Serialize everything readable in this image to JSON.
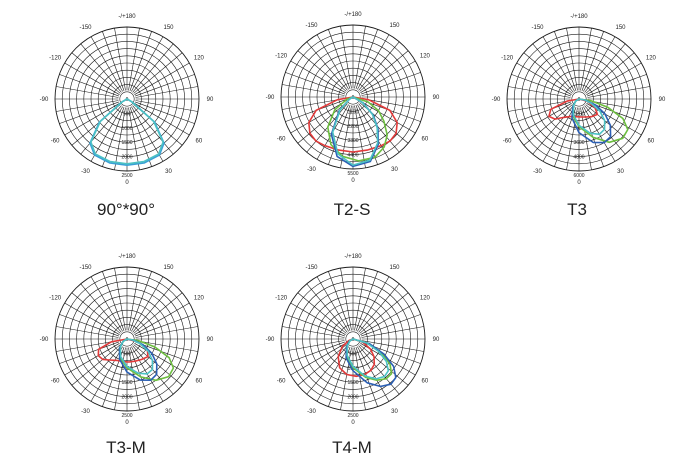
{
  "chart_data": [
    {
      "type": "polar",
      "title": "90°*90°",
      "angle_labels": [
        "-/+180",
        "150",
        "120",
        "90",
        "60",
        "30",
        "0",
        "-30",
        "-60",
        "-90",
        "-120",
        "-150"
      ],
      "radial_labels": [
        "0",
        "500",
        "1000",
        "1500",
        "2000",
        "2500"
      ],
      "rmax": 2500,
      "series": [
        {
          "color": "#3a9fd6",
          "points": [
            [
              -90,
              0
            ],
            [
              -60,
              200
            ],
            [
              -50,
              1250
            ],
            [
              -40,
              2000
            ],
            [
              -30,
              2250
            ],
            [
              -15,
              2300
            ],
            [
              0,
              2300
            ],
            [
              15,
              2300
            ],
            [
              30,
              2250
            ],
            [
              40,
              2000
            ],
            [
              50,
              1250
            ],
            [
              60,
              200
            ],
            [
              90,
              0
            ]
          ]
        },
        {
          "color": "#4cc2c4",
          "points": [
            [
              -90,
              0
            ],
            [
              -60,
              180
            ],
            [
              -50,
              1200
            ],
            [
              -40,
              1950
            ],
            [
              -30,
              2200
            ],
            [
              -15,
              2250
            ],
            [
              0,
              2250
            ],
            [
              15,
              2250
            ],
            [
              30,
              2200
            ],
            [
              40,
              1950
            ],
            [
              50,
              1200
            ],
            [
              60,
              180
            ],
            [
              90,
              0
            ]
          ]
        }
      ]
    },
    {
      "type": "polar",
      "title": "T2-S",
      "angle_labels": [
        "-/+180",
        "150",
        "120",
        "90",
        "60",
        "30",
        "0",
        "-30",
        "-60",
        "-90",
        "-120",
        "-150"
      ],
      "radial_labels": [
        "0",
        "1100",
        "2200",
        "3300",
        "4400",
        "5500"
      ],
      "rmax": 5500,
      "series": [
        {
          "color": "#e23a3a",
          "points": [
            [
              -90,
              0
            ],
            [
              -80,
              1200
            ],
            [
              -70,
              3000
            ],
            [
              -60,
              3900
            ],
            [
              -50,
              4300
            ],
            [
              -40,
              4400
            ],
            [
              -30,
              4300
            ],
            [
              -15,
              4200
            ],
            [
              0,
              4200
            ],
            [
              15,
              4200
            ],
            [
              30,
              4300
            ],
            [
              40,
              4400
            ],
            [
              50,
              4300
            ],
            [
              60,
              3900
            ],
            [
              70,
              3000
            ],
            [
              80,
              1200
            ],
            [
              90,
              0
            ]
          ]
        },
        {
          "color": "#6dbe3f",
          "points": [
            [
              -90,
              0
            ],
            [
              -70,
              500
            ],
            [
              -55,
              1700
            ],
            [
              -40,
              3000
            ],
            [
              -25,
              4000
            ],
            [
              -10,
              4600
            ],
            [
              5,
              4900
            ],
            [
              20,
              4900
            ],
            [
              32,
              4500
            ],
            [
              42,
              3900
            ],
            [
              52,
              3000
            ],
            [
              62,
              2200
            ],
            [
              72,
              1200
            ],
            [
              90,
              0
            ]
          ]
        },
        {
          "color": "#2b5fb4",
          "points": [
            [
              -90,
              0
            ],
            [
              -60,
              300
            ],
            [
              -45,
              1500
            ],
            [
              -30,
              3300
            ],
            [
              -15,
              4700
            ],
            [
              0,
              5300
            ],
            [
              15,
              5100
            ],
            [
              28,
              4100
            ],
            [
              38,
              3100
            ],
            [
              48,
              2100
            ],
            [
              60,
              900
            ],
            [
              90,
              0
            ]
          ]
        },
        {
          "color": "#4cc2c4",
          "points": [
            [
              -90,
              0
            ],
            [
              -60,
              300
            ],
            [
              -45,
              1400
            ],
            [
              -30,
              3100
            ],
            [
              -15,
              4500
            ],
            [
              0,
              5200
            ],
            [
              15,
              5000
            ],
            [
              28,
              4000
            ],
            [
              38,
              3000
            ],
            [
              48,
              2000
            ],
            [
              60,
              800
            ],
            [
              90,
              0
            ]
          ]
        }
      ]
    },
    {
      "type": "polar",
      "title": "T3",
      "angle_labels": [
        "-/+180",
        "150",
        "120",
        "90",
        "60",
        "30",
        "0",
        "-30",
        "-60",
        "-90",
        "-120",
        "-150"
      ],
      "radial_labels": [
        "0",
        "1200",
        "2400",
        "3600",
        "4800",
        "6000"
      ],
      "rmax": 6000,
      "series": [
        {
          "color": "#e23a3a",
          "points": [
            [
              -90,
              0
            ],
            [
              -80,
              1000
            ],
            [
              -70,
              2500
            ],
            [
              -60,
              2900
            ],
            [
              -50,
              2600
            ],
            [
              -40,
              2000
            ],
            [
              -25,
              1600
            ],
            [
              -10,
              1500
            ],
            [
              5,
              1500
            ],
            [
              20,
              1600
            ],
            [
              35,
              1800
            ],
            [
              50,
              2000
            ],
            [
              62,
              1500
            ],
            [
              75,
              700
            ],
            [
              90,
              0
            ]
          ]
        },
        {
          "color": "#6dbe3f",
          "points": [
            [
              -90,
              0
            ],
            [
              -60,
              300
            ],
            [
              -40,
              800
            ],
            [
              -20,
              1500
            ],
            [
              0,
              2300
            ],
            [
              20,
              3400
            ],
            [
              35,
              4400
            ],
            [
              48,
              4900
            ],
            [
              58,
              4800
            ],
            [
              66,
              4000
            ],
            [
              74,
              2500
            ],
            [
              82,
              1000
            ],
            [
              90,
              0
            ]
          ]
        },
        {
          "color": "#2b5fb4",
          "points": [
            [
              -90,
              0
            ],
            [
              -60,
              300
            ],
            [
              -40,
              800
            ],
            [
              -20,
              1700
            ],
            [
              0,
              2800
            ],
            [
              18,
              3800
            ],
            [
              30,
              4200
            ],
            [
              40,
              4100
            ],
            [
              50,
              3400
            ],
            [
              60,
              2500
            ],
            [
              70,
              1500
            ],
            [
              80,
              600
            ],
            [
              90,
              0
            ]
          ]
        },
        {
          "color": "#4cc2c4",
          "points": [
            [
              -90,
              0
            ],
            [
              -60,
              300
            ],
            [
              -40,
              700
            ],
            [
              -20,
              1400
            ],
            [
              0,
              2200
            ],
            [
              18,
              3000
            ],
            [
              30,
              3400
            ],
            [
              40,
              3300
            ],
            [
              50,
              2800
            ],
            [
              60,
              2000
            ],
            [
              70,
              1100
            ],
            [
              80,
              500
            ],
            [
              90,
              0
            ]
          ]
        }
      ]
    },
    {
      "type": "polar",
      "title": "T3-M",
      "angle_labels": [
        "-/+180",
        "150",
        "120",
        "90",
        "60",
        "30",
        "0",
        "-30",
        "-60",
        "-90",
        "-120",
        "-150"
      ],
      "radial_labels": [
        "0",
        "500",
        "1000",
        "1500",
        "2000",
        "2500"
      ],
      "rmax": 2500,
      "series": [
        {
          "color": "#e23a3a",
          "points": [
            [
              -90,
              0
            ],
            [
              -80,
              550
            ],
            [
              -70,
              1050
            ],
            [
              -60,
              1150
            ],
            [
              -50,
              1100
            ],
            [
              -40,
              950
            ],
            [
              -25,
              820
            ],
            [
              -10,
              800
            ],
            [
              5,
              800
            ],
            [
              20,
              820
            ],
            [
              35,
              870
            ],
            [
              50,
              950
            ],
            [
              62,
              800
            ],
            [
              75,
              400
            ],
            [
              90,
              0
            ]
          ]
        },
        {
          "color": "#6dbe3f",
          "points": [
            [
              -90,
              0
            ],
            [
              -60,
              150
            ],
            [
              -40,
              400
            ],
            [
              -20,
              700
            ],
            [
              0,
              1000
            ],
            [
              20,
              1400
            ],
            [
              35,
              1750
            ],
            [
              48,
              1950
            ],
            [
              58,
              1900
            ],
            [
              66,
              1600
            ],
            [
              74,
              1000
            ],
            [
              82,
              400
            ],
            [
              90,
              0
            ]
          ]
        },
        {
          "color": "#2b5fb4",
          "points": [
            [
              -90,
              0
            ],
            [
              -60,
              150
            ],
            [
              -40,
              400
            ],
            [
              -20,
              750
            ],
            [
              0,
              1150
            ],
            [
              18,
              1500
            ],
            [
              30,
              1650
            ],
            [
              40,
              1600
            ],
            [
              50,
              1350
            ],
            [
              60,
              1000
            ],
            [
              70,
              600
            ],
            [
              80,
              250
            ],
            [
              90,
              0
            ]
          ]
        },
        {
          "color": "#4cc2c4",
          "points": [
            [
              -90,
              0
            ],
            [
              -60,
              150
            ],
            [
              -40,
              350
            ],
            [
              -20,
              650
            ],
            [
              0,
              950
            ],
            [
              18,
              1250
            ],
            [
              30,
              1400
            ],
            [
              40,
              1380
            ],
            [
              50,
              1150
            ],
            [
              60,
              850
            ],
            [
              70,
              500
            ],
            [
              80,
              200
            ],
            [
              90,
              0
            ]
          ]
        }
      ]
    },
    {
      "type": "polar",
      "title": "T4-M",
      "angle_labels": [
        "-/+180",
        "150",
        "120",
        "90",
        "60",
        "30",
        "0",
        "-30",
        "-60",
        "-90",
        "-120",
        "-150"
      ],
      "radial_labels": [
        "0",
        "500",
        "1000",
        "1500",
        "2000",
        "2500"
      ],
      "rmax": 2500,
      "series": [
        {
          "color": "#e23a3a",
          "points": [
            [
              -90,
              0
            ],
            [
              -70,
              150
            ],
            [
              -55,
              450
            ],
            [
              -40,
              800
            ],
            [
              -25,
              1100
            ],
            [
              -10,
              1250
            ],
            [
              5,
              1300
            ],
            [
              18,
              1300
            ],
            [
              30,
              1250
            ],
            [
              40,
              1150
            ],
            [
              50,
              950
            ],
            [
              60,
              700
            ],
            [
              72,
              350
            ],
            [
              90,
              0
            ]
          ]
        },
        {
          "color": "#6dbe3f",
          "points": [
            [
              -90,
              0
            ],
            [
              -60,
              150
            ],
            [
              -40,
              350
            ],
            [
              -20,
              650
            ],
            [
              0,
              1000
            ],
            [
              18,
              1400
            ],
            [
              30,
              1650
            ],
            [
              40,
              1800
            ],
            [
              48,
              1800
            ],
            [
              56,
              1550
            ],
            [
              64,
              1100
            ],
            [
              74,
              550
            ],
            [
              90,
              0
            ]
          ]
        },
        {
          "color": "#2b5fb4",
          "points": [
            [
              -90,
              0
            ],
            [
              -60,
              150
            ],
            [
              -40,
              350
            ],
            [
              -20,
              700
            ],
            [
              0,
              1100
            ],
            [
              18,
              1600
            ],
            [
              30,
              1900
            ],
            [
              40,
              2050
            ],
            [
              48,
              2000
            ],
            [
              56,
              1700
            ],
            [
              64,
              1200
            ],
            [
              74,
              600
            ],
            [
              90,
              0
            ]
          ]
        },
        {
          "color": "#4cc2c4",
          "points": [
            [
              -90,
              0
            ],
            [
              -60,
              120
            ],
            [
              -40,
              300
            ],
            [
              -20,
              600
            ],
            [
              0,
              950
            ],
            [
              18,
              1350
            ],
            [
              30,
              1600
            ],
            [
              40,
              1700
            ],
            [
              48,
              1650
            ],
            [
              56,
              1400
            ],
            [
              64,
              1000
            ],
            [
              74,
              500
            ],
            [
              90,
              0
            ]
          ]
        }
      ]
    }
  ]
}
